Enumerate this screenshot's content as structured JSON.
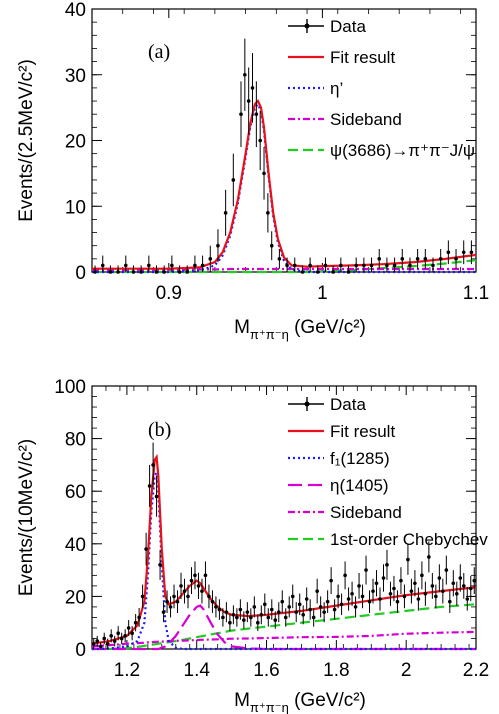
{
  "chart_data": [
    {
      "type": "scatter",
      "panel_label": "(a)",
      "xlabel": {
        "main": "M",
        "sub": "π⁺π⁻η",
        "rest": " (GeV/c²)"
      },
      "ylabel": "Events/(2.5MeV/c²)",
      "xlim": [
        0.85,
        1.1
      ],
      "ylim": [
        0,
        40
      ],
      "xticks": [
        0.9,
        1.0,
        1.1
      ],
      "xtick_labels": [
        "0.9",
        "1",
        "1.1"
      ],
      "yticks": [
        0,
        10,
        20,
        30,
        40
      ],
      "ytick_labels": [
        "0",
        "10",
        "20",
        "30",
        "40"
      ],
      "legend": [
        {
          "label": "Data",
          "style": "data",
          "color": "#000000"
        },
        {
          "label": "Fit result",
          "style": "solid",
          "color": "#e8111b"
        },
        {
          "label": "η’",
          "style": "dotted",
          "color": "#1a1aff"
        },
        {
          "label": "Sideband",
          "style": "dashdot",
          "color": "#d400d4"
        },
        {
          "label": "ψ(3686)→π⁺π⁻J/ψ",
          "style": "dashed",
          "color": "#22cc22"
        }
      ],
      "data_points": {
        "x": [
          0.852,
          0.857,
          0.862,
          0.867,
          0.872,
          0.877,
          0.882,
          0.887,
          0.892,
          0.897,
          0.902,
          0.907,
          0.912,
          0.917,
          0.922,
          0.927,
          0.932,
          0.937,
          0.942,
          0.947,
          0.9495,
          0.952,
          0.9545,
          0.957,
          0.9595,
          0.962,
          0.9645,
          0.967,
          0.972,
          0.977,
          0.982,
          0.987,
          0.992,
          0.997,
          1.002,
          1.007,
          1.012,
          1.017,
          1.022,
          1.027,
          1.032,
          1.037,
          1.042,
          1.047,
          1.052,
          1.057,
          1.062,
          1.067,
          1.072,
          1.077,
          1.082,
          1.087,
          1.092,
          1.097
        ],
        "y": [
          0,
          1,
          0,
          0,
          1,
          0,
          0,
          1,
          0,
          0,
          1,
          0,
          0,
          1,
          1,
          2,
          4,
          9,
          14,
          24,
          30,
          26,
          28,
          24,
          20,
          15,
          9,
          4,
          2,
          1,
          1,
          0,
          1,
          0,
          1,
          0,
          1,
          0,
          1,
          1,
          1,
          2,
          1,
          1,
          2,
          1,
          2,
          2,
          1,
          2,
          3,
          2,
          3,
          3
        ],
        "err": [
          1,
          1.5,
          1,
          1,
          1.5,
          1,
          1,
          1.5,
          1,
          1,
          1.5,
          1,
          1,
          1.5,
          1.5,
          2,
          2.5,
          3.5,
          4,
          5,
          5.5,
          5.1,
          5.3,
          5,
          4.5,
          4,
          3,
          2.2,
          1.5,
          1.2,
          1.2,
          1,
          1.2,
          1,
          1.2,
          1,
          1.2,
          1,
          1.2,
          1.2,
          1.2,
          1.5,
          1.2,
          1.2,
          1.5,
          1.2,
          1.5,
          1.5,
          1.2,
          1.5,
          1.8,
          1.5,
          1.8,
          1.8
        ]
      },
      "curves": {
        "x": [
          0.85,
          0.9,
          0.92,
          0.93,
          0.935,
          0.94,
          0.945,
          0.95,
          0.953,
          0.956,
          0.958,
          0.96,
          0.962,
          0.965,
          0.968,
          0.971,
          0.975,
          0.98,
          0.99,
          1.0,
          1.02,
          1.04,
          1.06,
          1.08,
          1.1
        ],
        "fit": [
          0.5,
          0.5,
          0.7,
          1.5,
          3,
          6,
          11,
          18,
          22.5,
          25.5,
          26,
          25,
          22,
          15,
          9,
          5,
          2.2,
          1.0,
          0.8,
          0.9,
          1.0,
          1.2,
          1.5,
          2.0,
          2.6
        ],
        "signal": [
          0,
          0,
          0.2,
          1,
          2.5,
          5.5,
          10.5,
          17.5,
          22,
          25,
          25.5,
          24.5,
          21.5,
          14.5,
          8.5,
          4.5,
          1.7,
          0.4,
          0,
          0,
          0,
          0,
          0,
          0,
          0
        ],
        "sideband": [
          0.3,
          0.35,
          0.4,
          0.4,
          0.4,
          0.45,
          0.45,
          0.45,
          0.45,
          0.45,
          0.45,
          0.45,
          0.45,
          0.45,
          0.45,
          0.45,
          0.45,
          0.45,
          0.45,
          0.45,
          0.45,
          0.45,
          0.45,
          0.45,
          0.45
        ],
        "background": [
          0,
          0,
          0,
          0,
          0,
          0,
          0,
          0,
          0,
          0,
          0,
          0,
          0,
          0,
          0,
          0,
          0,
          0,
          0,
          0.1,
          0.3,
          0.6,
          0.9,
          1.3,
          1.8
        ]
      }
    },
    {
      "type": "scatter",
      "panel_label": "(b)",
      "xlabel": {
        "main": "M",
        "sub": "π⁺π⁻η",
        "rest": " (GeV/c²)"
      },
      "ylabel": "Events/(10MeV/c²)",
      "xlim": [
        1.1,
        2.2
      ],
      "ylim": [
        0,
        100
      ],
      "xticks": [
        1.2,
        1.4,
        1.6,
        1.8,
        2.0,
        2.2
      ],
      "xtick_labels": [
        "1.2",
        "1.4",
        "1.6",
        "1.8",
        "2",
        "2.2"
      ],
      "yticks": [
        0,
        20,
        40,
        60,
        80,
        100
      ],
      "ytick_labels": [
        "0",
        "20",
        "40",
        "60",
        "80",
        "100"
      ],
      "legend": [
        {
          "label": "Data",
          "style": "data",
          "color": "#000000"
        },
        {
          "label": "Fit result",
          "style": "solid",
          "color": "#e8111b"
        },
        {
          "label": "f₁(1285)",
          "style": "dotted",
          "color": "#1a1aff"
        },
        {
          "label": "η(1405)",
          "style": "longdash",
          "color": "#d400d4"
        },
        {
          "label": "Sideband",
          "style": "dashdot",
          "color": "#d400d4"
        },
        {
          "label": "1st-order Chebychev",
          "style": "dashed",
          "color": "#22cc22"
        }
      ],
      "data_points": {
        "x": [
          1.105,
          1.115,
          1.125,
          1.135,
          1.145,
          1.155,
          1.165,
          1.175,
          1.185,
          1.195,
          1.205,
          1.215,
          1.225,
          1.235,
          1.245,
          1.255,
          1.265,
          1.275,
          1.285,
          1.295,
          1.305,
          1.315,
          1.325,
          1.335,
          1.345,
          1.355,
          1.365,
          1.375,
          1.385,
          1.395,
          1.405,
          1.415,
          1.425,
          1.435,
          1.445,
          1.455,
          1.465,
          1.475,
          1.485,
          1.495,
          1.505,
          1.515,
          1.525,
          1.535,
          1.545,
          1.555,
          1.565,
          1.575,
          1.585,
          1.595,
          1.605,
          1.615,
          1.625,
          1.635,
          1.645,
          1.655,
          1.665,
          1.675,
          1.685,
          1.695,
          1.705,
          1.715,
          1.725,
          1.735,
          1.745,
          1.755,
          1.765,
          1.775,
          1.785,
          1.795,
          1.805,
          1.815,
          1.825,
          1.835,
          1.845,
          1.855,
          1.865,
          1.875,
          1.885,
          1.895,
          1.905,
          1.915,
          1.925,
          1.935,
          1.945,
          1.955,
          1.965,
          1.975,
          1.985,
          1.995,
          2.005,
          2.015,
          2.025,
          2.035,
          2.045,
          2.055,
          2.065,
          2.075,
          2.085,
          2.095,
          2.105,
          2.115,
          2.125,
          2.135,
          2.145,
          2.155,
          2.165,
          2.175,
          2.185,
          2.195
        ],
        "y": [
          2,
          3,
          1,
          4,
          2,
          5,
          3,
          6,
          4,
          5,
          8,
          6,
          10,
          12,
          20,
          38,
          62,
          70,
          58,
          32,
          14,
          18,
          16,
          20,
          18,
          24,
          22,
          20,
          26,
          28,
          24,
          22,
          28,
          20,
          18,
          16,
          15,
          12,
          14,
          10,
          13,
          12,
          15,
          11,
          14,
          12,
          16,
          10,
          13,
          17,
          12,
          15,
          11,
          14,
          18,
          12,
          16,
          20,
          14,
          17,
          13,
          19,
          15,
          12,
          22,
          16,
          14,
          18,
          26,
          15,
          20,
          17,
          28,
          19,
          21,
          16,
          24,
          20,
          30,
          18,
          22,
          25,
          19,
          27,
          32,
          21,
          23,
          18,
          26,
          20,
          34,
          22,
          25,
          19,
          28,
          21,
          35,
          24,
          20,
          27,
          22,
          30,
          18,
          25,
          21,
          27,
          24,
          19,
          23,
          26
        ],
        "err": [
          2,
          2,
          1.5,
          2.2,
          2,
          2.5,
          2,
          2.7,
          2.2,
          2.5,
          3,
          2.7,
          3.3,
          3.6,
          4.5,
          6.2,
          8,
          8.5,
          7.7,
          5.7,
          3.8,
          4.3,
          4,
          4.5,
          4.3,
          5,
          4.7,
          4.5,
          5.1,
          5.3,
          5,
          4.7,
          5.3,
          4.5,
          4.3,
          4,
          3.9,
          3.5,
          3.8,
          3.2,
          3.6,
          3.5,
          3.9,
          3.3,
          3.8,
          3.5,
          4,
          3.2,
          3.6,
          4.1,
          3.5,
          3.9,
          3.3,
          3.8,
          4.3,
          3.5,
          4,
          4.5,
          3.8,
          4.1,
          3.6,
          4.4,
          3.9,
          3.5,
          4.7,
          4,
          3.8,
          4.3,
          5.1,
          3.9,
          4.5,
          4.1,
          5.3,
          4.4,
          4.6,
          4,
          4.9,
          4.5,
          5.5,
          4.3,
          4.7,
          5,
          4.4,
          5.2,
          5.7,
          4.6,
          4.8,
          4.3,
          5.1,
          4.5,
          5.8,
          4.7,
          5,
          4.4,
          5.3,
          4.6,
          5.9,
          4.9,
          4.5,
          5.2,
          4.7,
          5.5,
          4.3,
          5,
          4.6,
          5.2,
          4.9,
          4.4,
          4.8,
          5.1
        ]
      },
      "curves": {
        "x": [
          1.1,
          1.15,
          1.2,
          1.23,
          1.25,
          1.26,
          1.27,
          1.28,
          1.285,
          1.29,
          1.3,
          1.31,
          1.32,
          1.34,
          1.36,
          1.38,
          1.4,
          1.41,
          1.42,
          1.44,
          1.46,
          1.48,
          1.5,
          1.55,
          1.6,
          1.7,
          1.8,
          1.9,
          2.0,
          2.1,
          2.2
        ],
        "fit": [
          2,
          3,
          5,
          9,
          18,
          35,
          58,
          72,
          73,
          66,
          38,
          20,
          17,
          18,
          21,
          24,
          26,
          25,
          23,
          19,
          16,
          14,
          13,
          12.5,
          13,
          14.5,
          16.5,
          18.5,
          20.5,
          22,
          23.5
        ],
        "signal1": [
          0,
          0.2,
          1,
          3,
          10,
          28,
          52,
          66,
          67,
          60,
          32,
          10,
          3,
          0.5,
          0,
          0,
          0,
          0,
          0,
          0,
          0,
          0,
          0,
          0,
          0,
          0,
          0,
          0,
          0,
          0,
          0
        ],
        "signal2": [
          0,
          0,
          0,
          0,
          0,
          0,
          0,
          0,
          0,
          0,
          0.5,
          1,
          2,
          5,
          9,
          13,
          16,
          16.5,
          15,
          10,
          5.5,
          2.5,
          1,
          0.2,
          0,
          0,
          0,
          0,
          0,
          0,
          0
        ],
        "sideband": [
          1,
          1.5,
          2,
          2.2,
          2.4,
          2.5,
          2.6,
          2.7,
          2.7,
          2.8,
          2.8,
          2.9,
          3,
          3.1,
          3.2,
          3.3,
          3.4,
          3.5,
          3.5,
          3.6,
          3.7,
          3.8,
          3.9,
          4,
          4.2,
          4.5,
          4.6,
          5,
          5.8,
          6.2,
          6.5
        ],
        "background": [
          0,
          0,
          0.3,
          0.8,
          1.2,
          1.4,
          1.6,
          1.8,
          1.9,
          2,
          2.2,
          2.4,
          2.6,
          3,
          3.5,
          4,
          4.5,
          4.8,
          5,
          5.5,
          6,
          6.5,
          7,
          7.8,
          8.5,
          10,
          11.5,
          13,
          14.5,
          16,
          17
        ]
      }
    }
  ]
}
